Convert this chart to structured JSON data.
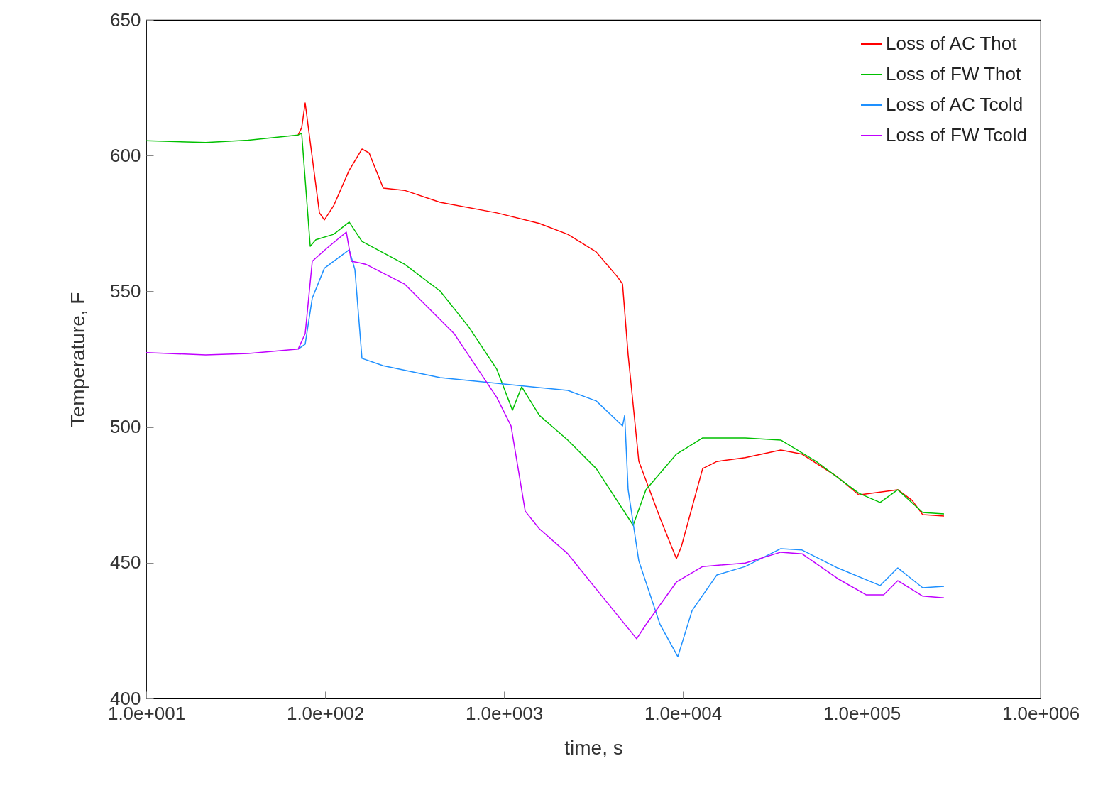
{
  "chart_data": {
    "type": "line",
    "xlabel": "time, s",
    "ylabel": "Temperature, F",
    "log": "x",
    "grid": false,
    "legend": "top right",
    "line_style": "solid",
    "marker": "none",
    "xlim": [
      10,
      1000000
    ],
    "xticks": [
      {
        "value": 10,
        "label": "1.0e+001"
      },
      {
        "value": 100,
        "label": "1.0e+002"
      },
      {
        "value": 1000,
        "label": "1.0e+003"
      },
      {
        "value": 10000,
        "label": "1.0e+004"
      },
      {
        "value": 100000,
        "label": "1.0e+005"
      },
      {
        "value": 1000000,
        "label": "1.0e+006"
      }
    ],
    "ylim": [
      400,
      650
    ],
    "yticks": [
      400,
      450,
      500,
      550,
      600,
      650
    ],
    "series": [
      {
        "name": "Loss of AC Thot",
        "color": "#ff0000",
        "x": [
          70.7,
          74,
          77.4,
          82.6,
          93,
          99.1,
          111.6,
          136.4,
          160.8,
          176.2,
          211.5,
          278,
          439.5,
          912,
          1578,
          2275,
          3280,
          4315,
          4603,
          4947,
          5675,
          7467,
          9210,
          9820,
          12910,
          15500,
          22340,
          35300,
          46400,
          73300,
          96400,
          159200,
          191400,
          219400,
          288600
        ],
        "values": [
          607.6,
          610.3,
          619.4,
          605,
          578.9,
          576.3,
          581.5,
          594.6,
          602.4,
          601,
          588,
          587.2,
          582.8,
          578.9,
          575,
          571,
          564.5,
          555.3,
          552.7,
          526.6,
          487.4,
          466.4,
          451.5,
          456,
          484.7,
          487.3,
          488.7,
          491.5,
          490,
          481.6,
          475,
          476.9,
          473,
          467.7,
          467.2
        ]
      },
      {
        "name": "Loss of FW Thot",
        "color": "#00c000",
        "x": [
          10,
          21.5,
          37.3,
          70.7,
          74,
          82.6,
          88.8,
          111.6,
          136.4,
          160.8,
          278,
          439.5,
          634,
          912,
          1116,
          1256,
          1578,
          2275,
          3280,
          5275,
          6220,
          9210,
          12910,
          22340,
          35300,
          55700,
          96400,
          126800,
          159200,
          219400,
          288600
        ],
        "values": [
          605.5,
          604.8,
          605.7,
          607.6,
          608.2,
          566.6,
          569,
          571,
          575.5,
          568.4,
          560,
          550.1,
          537,
          521.3,
          506.2,
          514.8,
          504.3,
          495.2,
          484.7,
          463.8,
          476.9,
          490,
          496,
          496,
          495.2,
          487.3,
          475.6,
          472.2,
          476.9,
          468.5,
          468
        ]
      },
      {
        "name": "Loss of AC Tcold",
        "color": "#1e90ff",
        "x": [
          70.7,
          77.4,
          84.8,
          99.1,
          136.4,
          146.8,
          160.8,
          211.5,
          439.5,
          912,
          2275,
          3280,
          4603,
          4731,
          4947,
          5675,
          7467,
          9380,
          11270,
          15500,
          22340,
          35300,
          46400,
          73300,
          126800,
          159200,
          219400,
          288600
        ],
        "values": [
          528.7,
          530.5,
          547.5,
          558.5,
          565.3,
          558,
          525.3,
          522.6,
          518.2,
          516.1,
          513.5,
          509.6,
          500.4,
          504.3,
          476.9,
          450.7,
          427.2,
          415.4,
          432.4,
          445.5,
          448.6,
          455.2,
          454.7,
          448.1,
          441.6,
          448.1,
          440.8,
          441.3
        ]
      },
      {
        "name": "Loss of FW Tcold",
        "color": "#c000ff",
        "x": [
          10,
          21.5,
          37.3,
          70.7,
          77.4,
          84.8,
          102,
          131.5,
          140.2,
          168.4,
          278,
          527,
          912,
          1096,
          1315,
          1578,
          2275,
          3280,
          5520,
          6220,
          9210,
          12910,
          22340,
          35300,
          46400,
          73300,
          105700,
          132700,
          159200,
          219400,
          288600
        ],
        "values": [
          527.4,
          526.6,
          527.1,
          528.7,
          534.4,
          561.1,
          565.8,
          571.8,
          561.1,
          560,
          552.7,
          534.4,
          510.9,
          500.4,
          469,
          462.5,
          453.3,
          440.3,
          422,
          427.2,
          442.9,
          448.6,
          449.9,
          453.9,
          453.3,
          444.2,
          438.2,
          438.2,
          443.4,
          437.7,
          437.1
        ]
      }
    ]
  }
}
